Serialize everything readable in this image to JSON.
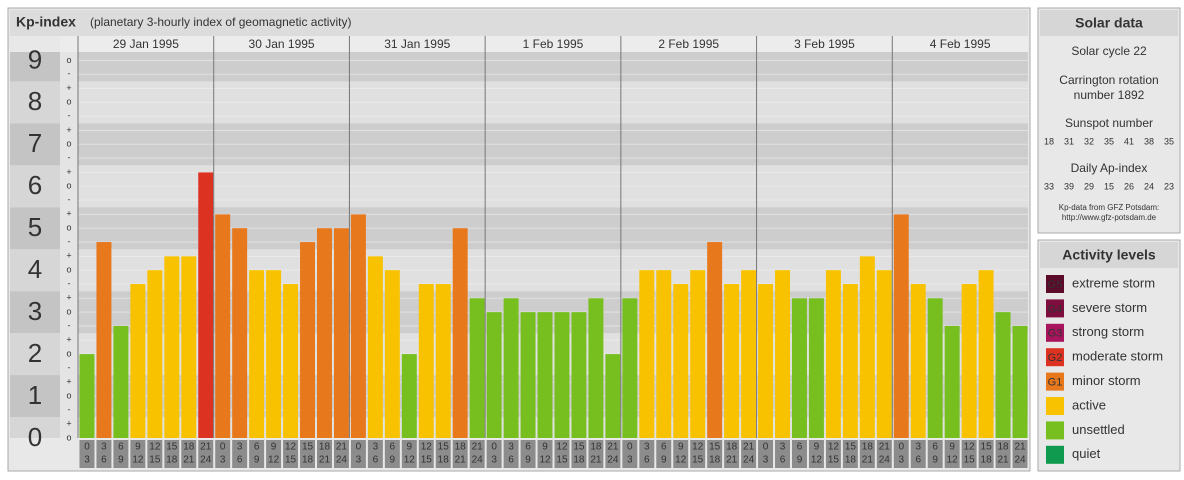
{
  "chart_data": {
    "type": "bar",
    "title": "Kp-index",
    "subtitle": "(planetary 3-hourly index of geomagnetic activity)",
    "ylim": [
      0,
      9.2
    ],
    "yticks": [
      0,
      1,
      2,
      3,
      4,
      5,
      6,
      7,
      8,
      9
    ],
    "yminor": [
      {
        "value": 0,
        "label": "o"
      },
      {
        "value": 0.33,
        "label": "+"
      },
      {
        "value": 0.67,
        "label": "-"
      },
      {
        "value": 1,
        "label": "o"
      },
      {
        "value": 1.33,
        "label": "+"
      },
      {
        "value": 1.67,
        "label": "-"
      },
      {
        "value": 2,
        "label": "o"
      },
      {
        "value": 2.33,
        "label": "+"
      },
      {
        "value": 2.67,
        "label": "-"
      },
      {
        "value": 3,
        "label": "o"
      },
      {
        "value": 3.33,
        "label": "+"
      },
      {
        "value": 3.67,
        "label": "-"
      },
      {
        "value": 4,
        "label": "o"
      },
      {
        "value": 4.33,
        "label": "+"
      },
      {
        "value": 4.67,
        "label": "-"
      },
      {
        "value": 5,
        "label": "o"
      },
      {
        "value": 5.33,
        "label": "+"
      },
      {
        "value": 5.67,
        "label": "-"
      },
      {
        "value": 6,
        "label": "o"
      },
      {
        "value": 6.33,
        "label": "+"
      },
      {
        "value": 6.67,
        "label": "-"
      },
      {
        "value": 7,
        "label": "o"
      },
      {
        "value": 7.33,
        "label": "+"
      },
      {
        "value": 7.67,
        "label": "-"
      },
      {
        "value": 8,
        "label": "o"
      },
      {
        "value": 8.33,
        "label": "+"
      },
      {
        "value": 8.67,
        "label": "-"
      },
      {
        "value": 9,
        "label": "o"
      }
    ],
    "hour_ticks": [
      [
        "0",
        "3"
      ],
      [
        "3",
        "6"
      ],
      [
        "6",
        "9"
      ],
      [
        "9",
        "12"
      ],
      [
        "12",
        "15"
      ],
      [
        "15",
        "18"
      ],
      [
        "18",
        "21"
      ],
      [
        "21",
        "24"
      ]
    ],
    "days": [
      {
        "date": "29 Jan 1995",
        "values": [
          2,
          4.67,
          2.67,
          3.67,
          4,
          4.33,
          4.33,
          6.33
        ],
        "colors": [
          "#76bf1f",
          "#e8781c",
          "#76bf1f",
          "#f8c200",
          "#f8c200",
          "#f8c200",
          "#f8c200",
          "#dc3221"
        ]
      },
      {
        "date": "30 Jan 1995",
        "values": [
          5.33,
          5,
          4,
          4,
          3.67,
          4.67,
          5,
          5
        ],
        "colors": [
          "#e8781c",
          "#e8781c",
          "#f8c200",
          "#f8c200",
          "#f8c200",
          "#e8781c",
          "#e8781c",
          "#e8781c"
        ]
      },
      {
        "date": "31 Jan 1995",
        "values": [
          5.33,
          4.33,
          4,
          2,
          3.67,
          3.67,
          5,
          3.33
        ],
        "colors": [
          "#e8781c",
          "#f8c200",
          "#f8c200",
          "#76bf1f",
          "#f8c200",
          "#f8c200",
          "#e8781c",
          "#76bf1f"
        ]
      },
      {
        "date": "1 Feb 1995",
        "values": [
          3,
          3.33,
          3,
          3,
          3,
          3,
          3.33,
          2
        ],
        "colors": [
          "#76bf1f",
          "#76bf1f",
          "#76bf1f",
          "#76bf1f",
          "#76bf1f",
          "#76bf1f",
          "#76bf1f",
          "#76bf1f"
        ]
      },
      {
        "date": "2 Feb 1995",
        "values": [
          3.33,
          4,
          4,
          3.67,
          4,
          4.67,
          3.67,
          4
        ],
        "colors": [
          "#76bf1f",
          "#f8c200",
          "#f8c200",
          "#f8c200",
          "#f8c200",
          "#e8781c",
          "#f8c200",
          "#f8c200"
        ]
      },
      {
        "date": "3 Feb 1995",
        "values": [
          3.67,
          4,
          3.33,
          3.33,
          4,
          3.67,
          4.33,
          4
        ],
        "colors": [
          "#f8c200",
          "#f8c200",
          "#76bf1f",
          "#76bf1f",
          "#f8c200",
          "#f8c200",
          "#f8c200",
          "#f8c200"
        ]
      },
      {
        "date": "4 Feb 1995",
        "values": [
          5.33,
          3.67,
          3.33,
          2.67,
          3.67,
          4,
          3,
          2.67
        ],
        "colors": [
          "#e8781c",
          "#f8c200",
          "#76bf1f",
          "#76bf1f",
          "#f8c200",
          "#f8c200",
          "#76bf1f",
          "#76bf1f"
        ]
      }
    ]
  },
  "solar_data": {
    "title": "Solar data",
    "cycle": "Solar cycle 22",
    "carrington": [
      "Carrington rotation",
      "number 1892"
    ],
    "sunspot_title": "Sunspot number",
    "sunspot": [
      18,
      31,
      32,
      35,
      41,
      38,
      35
    ],
    "ap_title": "Daily Ap-index",
    "ap": [
      33,
      39,
      29,
      15,
      26,
      24,
      23
    ],
    "source": [
      "Kp-data from GFZ Potsdam:",
      "http://www.gfz-potsdam.de"
    ]
  },
  "activity_levels": {
    "title": "Activity levels",
    "items": [
      {
        "badge": "G5",
        "label": "extreme storm",
        "color": "#5c0a2a"
      },
      {
        "badge": "G4",
        "label": "severe storm",
        "color": "#7d0e3e"
      },
      {
        "badge": "G3",
        "label": "strong storm",
        "color": "#a8155e"
      },
      {
        "badge": "G2",
        "label": "moderate storm",
        "color": "#dc3221"
      },
      {
        "badge": "G1",
        "label": "minor storm",
        "color": "#e8781c"
      },
      {
        "badge": "",
        "label": "active",
        "color": "#f8c200"
      },
      {
        "badge": "",
        "label": "unsettled",
        "color": "#76bf1f"
      },
      {
        "badge": "",
        "label": "quiet",
        "color": "#0f9a50"
      }
    ]
  }
}
